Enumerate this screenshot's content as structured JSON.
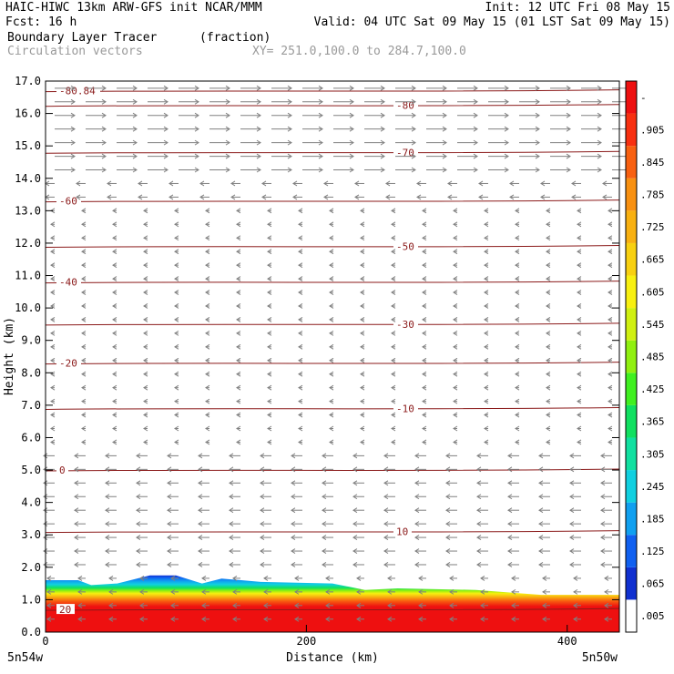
{
  "header": {
    "title_left": "HAIC-HIWC 13km ARW-GFS init   NCAR/MMM",
    "init": "Init: 12 UTC Fri 08 May 15",
    "fcst": "Fcst:   16 h",
    "valid": "Valid: 04 UTC Sat 09 May 15 (01 LST Sat 09 May 15)",
    "field_name": "Boundary Layer Tracer",
    "field_units": "(fraction)",
    "overlay_name": "Circulation vectors",
    "cross_section": "XY= 251.0,100.0 to 284.7,100.0"
  },
  "chart_data": {
    "type": "heatmap",
    "title": "Boundary Layer Tracer",
    "ylabel": "Height (km)",
    "xlabel": "Distance (km)",
    "ylim": [
      0,
      17
    ],
    "xlim": [
      0,
      440
    ],
    "y_ticks": [
      "0.0",
      "1.0",
      "2.0",
      "3.0",
      "4.0",
      "5.0",
      "6.0",
      "7.0",
      "8.0",
      "9.0",
      "10.0",
      "11.0",
      "12.0",
      "13.0",
      "14.0",
      "15.0",
      "16.0",
      "17.0"
    ],
    "x_ticks": [
      {
        "value": 0,
        "label": "0"
      },
      {
        "value": 200,
        "label": "200"
      },
      {
        "value": 400,
        "label": "400"
      }
    ],
    "x_end_labels": {
      "left": "5n54w",
      "right": "5n50w"
    },
    "colorbar": {
      "labels": [
        ".005",
        ".065",
        ".125",
        ".185",
        ".245",
        ".305",
        ".365",
        ".425",
        ".485",
        ".545",
        ".605",
        ".665",
        ".725",
        ".785",
        ".845",
        ".905",
        "-"
      ],
      "colors": [
        "#ffffff",
        "#1030d0",
        "#1060f0",
        "#10a0f0",
        "#10d0e0",
        "#10e0a0",
        "#10e060",
        "#40f020",
        "#90f010",
        "#d0f010",
        "#f8f010",
        "#f8d010",
        "#f8b010",
        "#f89010",
        "#f86010",
        "#f83010",
        "#ee1010"
      ]
    },
    "tracer_top_km": [
      [
        0,
        1.6
      ],
      [
        25,
        1.6
      ],
      [
        35,
        1.45
      ],
      [
        55,
        1.5
      ],
      [
        80,
        1.75
      ],
      [
        100,
        1.75
      ],
      [
        120,
        1.5
      ],
      [
        135,
        1.65
      ],
      [
        150,
        1.6
      ],
      [
        165,
        1.55
      ],
      [
        220,
        1.5
      ],
      [
        245,
        1.3
      ],
      [
        270,
        1.35
      ],
      [
        330,
        1.3
      ],
      [
        380,
        1.15
      ],
      [
        440,
        1.15
      ]
    ],
    "temperature_contours": [
      {
        "label": "-80",
        "y": 16.25
      },
      {
        "label": "-80.84",
        "y": 16.7
      },
      {
        "label": "-70",
        "y": 14.8
      },
      {
        "label": "-60",
        "y": 13.3
      },
      {
        "label": "-50",
        "y": 11.9
      },
      {
        "label": "-40",
        "y": 10.8
      },
      {
        "label": "-30",
        "y": 9.5
      },
      {
        "label": "-20",
        "y": 8.3
      },
      {
        "label": "-10",
        "y": 6.9
      },
      {
        "label": "0",
        "y": 5.0
      },
      {
        "label": "10",
        "y": 3.1
      },
      {
        "label": "20",
        "y": 0.7
      }
    ],
    "contour_color": "#8b1a1a",
    "vector_color": "#808080"
  }
}
